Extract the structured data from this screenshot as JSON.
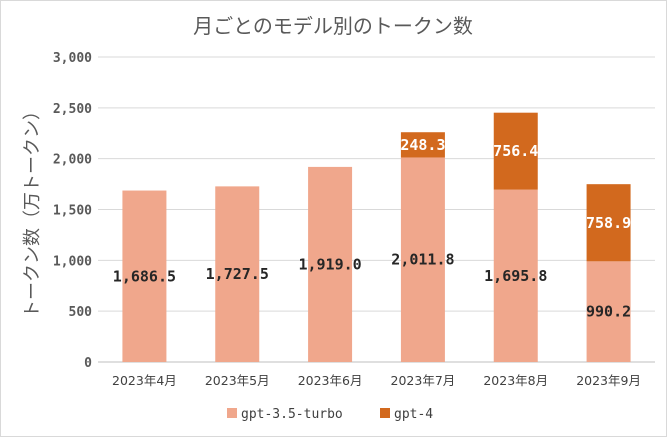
{
  "chart_data": {
    "type": "bar",
    "stacked": true,
    "title": "月ごとのモデル別のトークン数",
    "ylabel": "トークン数（万トークン）",
    "xlabel": "",
    "ylim": [
      0,
      3000
    ],
    "yticks": [
      0,
      500,
      1000,
      1500,
      2000,
      2500,
      3000
    ],
    "ytick_labels": [
      "0",
      "500",
      "1,000",
      "1,500",
      "2,000",
      "2,500",
      "3,000"
    ],
    "grid": true,
    "legend_position": "bottom",
    "categories": [
      "2023年4月",
      "2023年5月",
      "2023年6月",
      "2023年7月",
      "2023年8月",
      "2023年9月"
    ],
    "series": [
      {
        "name": "gpt-3.5-turbo",
        "color": "#f0a78c",
        "label_color": "#262626",
        "values": [
          1686.5,
          1727.5,
          1919.0,
          2011.8,
          1695.8,
          990.2
        ],
        "labels": [
          "1,686.5",
          "1,727.5",
          "1,919.0",
          "2,011.8",
          "1,695.8",
          "990.2"
        ]
      },
      {
        "name": "gpt-4",
        "color": "#d2691e",
        "label_color": "#ffffff",
        "values": [
          null,
          null,
          null,
          248.3,
          756.4,
          758.9
        ],
        "labels": [
          "",
          "",
          "",
          "248.3",
          "756.4",
          "758.9"
        ]
      }
    ]
  }
}
